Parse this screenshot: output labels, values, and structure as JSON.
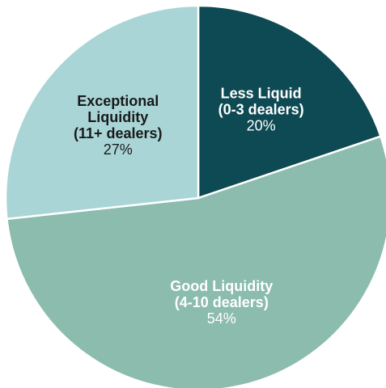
{
  "chart_data": {
    "type": "pie",
    "categories": [
      [
        "Less Liquid",
        "(0-3 dealers)"
      ],
      [
        "Good Liquidity",
        "(4-10 dealers)"
      ],
      [
        "Exceptional",
        "Liquidity",
        "(11+ dealers)"
      ]
    ],
    "values": [
      20,
      54,
      27
    ],
    "value_labels": [
      "20%",
      "54%",
      "27%"
    ],
    "colors": [
      "#0e4a53",
      "#8bbcad",
      "#a9d5d6"
    ],
    "label_colors": [
      "#ffffff",
      "#ffffff",
      "#1a1a1a"
    ]
  }
}
